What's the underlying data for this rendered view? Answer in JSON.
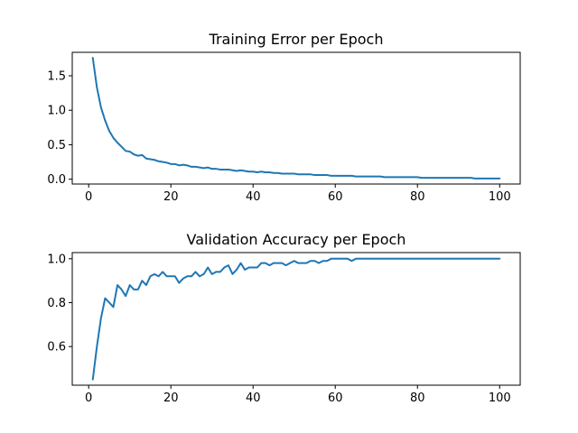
{
  "chart_data": [
    {
      "type": "line",
      "title": "Training Error per Epoch",
      "xlabel": "",
      "ylabel": "",
      "xlim": [
        -4,
        105
      ],
      "ylim": [
        -0.07,
        1.84
      ],
      "xticks": [
        0,
        20,
        40,
        60,
        80,
        100
      ],
      "yticks": [
        0.0,
        0.5,
        1.0,
        1.5
      ],
      "ytick_labels": [
        "0.0",
        "0.5",
        "1.0",
        "1.5"
      ],
      "grid": false,
      "color": "#1f77b4",
      "series": [
        {
          "x": [
            1,
            2,
            3,
            4,
            5,
            6,
            7,
            8,
            9,
            10,
            11,
            12,
            13,
            14,
            15,
            16,
            17,
            18,
            19,
            20,
            21,
            22,
            23,
            24,
            25,
            26,
            27,
            28,
            29,
            30,
            31,
            32,
            33,
            34,
            35,
            36,
            37,
            38,
            39,
            40,
            41,
            42,
            43,
            44,
            45,
            46,
            47,
            48,
            49,
            50,
            51,
            52,
            53,
            54,
            55,
            56,
            57,
            58,
            59,
            60,
            61,
            62,
            63,
            64,
            65,
            66,
            67,
            68,
            69,
            70,
            71,
            72,
            73,
            74,
            75,
            76,
            77,
            78,
            79,
            80,
            81,
            82,
            83,
            84,
            85,
            86,
            87,
            88,
            89,
            90,
            91,
            92,
            93,
            94,
            95,
            96,
            97,
            98,
            99,
            100
          ],
          "y": [
            1.76,
            1.33,
            1.04,
            0.85,
            0.7,
            0.6,
            0.53,
            0.47,
            0.41,
            0.4,
            0.36,
            0.34,
            0.35,
            0.3,
            0.29,
            0.28,
            0.26,
            0.25,
            0.24,
            0.22,
            0.22,
            0.2,
            0.21,
            0.2,
            0.18,
            0.18,
            0.17,
            0.16,
            0.17,
            0.15,
            0.15,
            0.14,
            0.14,
            0.14,
            0.13,
            0.12,
            0.13,
            0.12,
            0.11,
            0.11,
            0.1,
            0.11,
            0.1,
            0.1,
            0.09,
            0.09,
            0.08,
            0.08,
            0.08,
            0.08,
            0.07,
            0.07,
            0.07,
            0.07,
            0.06,
            0.06,
            0.06,
            0.06,
            0.05,
            0.05,
            0.05,
            0.05,
            0.05,
            0.05,
            0.04,
            0.04,
            0.04,
            0.04,
            0.04,
            0.04,
            0.04,
            0.03,
            0.03,
            0.03,
            0.03,
            0.03,
            0.03,
            0.03,
            0.03,
            0.03,
            0.02,
            0.02,
            0.02,
            0.02,
            0.02,
            0.02,
            0.02,
            0.02,
            0.02,
            0.02,
            0.02,
            0.02,
            0.02,
            0.01,
            0.01,
            0.01,
            0.01,
            0.01,
            0.01,
            0.01
          ]
        }
      ]
    },
    {
      "type": "line",
      "title": "Validation Accuracy per Epoch",
      "xlabel": "",
      "ylabel": "",
      "xlim": [
        -4,
        105
      ],
      "ylim": [
        0.424,
        1.028
      ],
      "xticks": [
        0,
        20,
        40,
        60,
        80,
        100
      ],
      "yticks": [
        0.6,
        0.8,
        1.0
      ],
      "ytick_labels": [
        "0.6",
        "0.8",
        "1.0"
      ],
      "grid": false,
      "color": "#1f77b4",
      "series": [
        {
          "x": [
            1,
            2,
            3,
            4,
            5,
            6,
            7,
            8,
            9,
            10,
            11,
            12,
            13,
            14,
            15,
            16,
            17,
            18,
            19,
            20,
            21,
            22,
            23,
            24,
            25,
            26,
            27,
            28,
            29,
            30,
            31,
            32,
            33,
            34,
            35,
            36,
            37,
            38,
            39,
            40,
            41,
            42,
            43,
            44,
            45,
            46,
            47,
            48,
            49,
            50,
            51,
            52,
            53,
            54,
            55,
            56,
            57,
            58,
            59,
            60,
            61,
            62,
            63,
            64,
            65,
            66,
            67,
            68,
            69,
            70,
            71,
            72,
            73,
            74,
            75,
            76,
            77,
            78,
            79,
            80,
            81,
            82,
            83,
            84,
            85,
            86,
            87,
            88,
            89,
            90,
            91,
            92,
            93,
            94,
            95,
            96,
            97,
            98,
            99,
            100
          ],
          "y": [
            0.45,
            0.6,
            0.73,
            0.82,
            0.8,
            0.78,
            0.88,
            0.86,
            0.83,
            0.88,
            0.86,
            0.86,
            0.9,
            0.88,
            0.92,
            0.93,
            0.92,
            0.94,
            0.92,
            0.92,
            0.92,
            0.89,
            0.91,
            0.92,
            0.92,
            0.94,
            0.92,
            0.93,
            0.96,
            0.93,
            0.94,
            0.94,
            0.96,
            0.97,
            0.93,
            0.95,
            0.98,
            0.95,
            0.96,
            0.96,
            0.96,
            0.98,
            0.98,
            0.97,
            0.98,
            0.98,
            0.98,
            0.97,
            0.98,
            0.99,
            0.98,
            0.98,
            0.98,
            0.99,
            0.99,
            0.98,
            0.99,
            0.99,
            1.0,
            1.0,
            1.0,
            1.0,
            1.0,
            0.99,
            1.0,
            1.0,
            1.0,
            1.0,
            1.0,
            1.0,
            1.0,
            1.0,
            1.0,
            1.0,
            1.0,
            1.0,
            1.0,
            1.0,
            1.0,
            1.0,
            1.0,
            1.0,
            1.0,
            1.0,
            1.0,
            1.0,
            1.0,
            1.0,
            1.0,
            1.0,
            1.0,
            1.0,
            1.0,
            1.0,
            1.0,
            1.0,
            1.0,
            1.0,
            1.0,
            1.0
          ]
        }
      ]
    }
  ]
}
